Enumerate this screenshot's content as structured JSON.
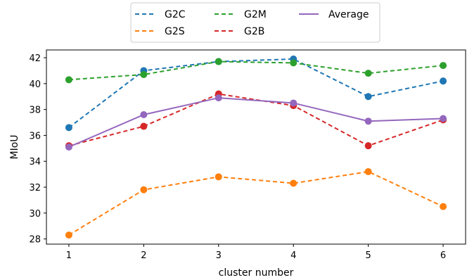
{
  "chart_data": {
    "type": "line",
    "title": "",
    "xlabel": "cluster number",
    "ylabel": "MIoU",
    "x": [
      1,
      2,
      3,
      4,
      5,
      6
    ],
    "xlim": [
      0.7,
      6.3
    ],
    "ylim": [
      27.6,
      42.6
    ],
    "xticks": [
      1,
      2,
      3,
      4,
      5,
      6
    ],
    "yticks": [
      28,
      30,
      32,
      34,
      36,
      38,
      40,
      42
    ],
    "grid": false,
    "legend_position": "top-center",
    "series": [
      {
        "name": "G2C",
        "color": "#1f77b4",
        "dashed": true,
        "values": [
          36.6,
          41.0,
          41.7,
          41.9,
          39.0,
          40.2
        ]
      },
      {
        "name": "G2S",
        "color": "#ff7f0e",
        "dashed": true,
        "values": [
          28.3,
          31.8,
          32.8,
          32.3,
          33.2,
          30.5
        ]
      },
      {
        "name": "G2M",
        "color": "#2ca02c",
        "dashed": true,
        "values": [
          40.3,
          40.7,
          41.7,
          41.6,
          40.8,
          41.4
        ]
      },
      {
        "name": "G2B",
        "color": "#d62728",
        "dashed": true,
        "values": [
          35.2,
          36.7,
          39.2,
          38.3,
          35.2,
          37.2
        ]
      },
      {
        "name": "Average",
        "color": "#9467bd",
        "dashed": false,
        "values": [
          35.1,
          37.6,
          38.9,
          38.5,
          37.1,
          37.3
        ]
      }
    ]
  }
}
